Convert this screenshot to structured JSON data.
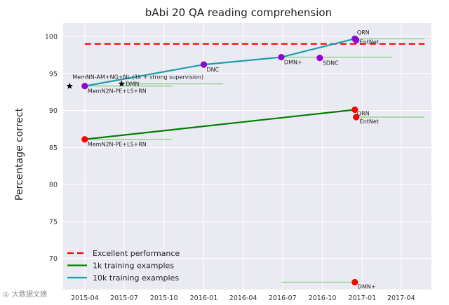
{
  "chart_data": {
    "type": "scatter",
    "title": "bAbi 20 QA reading comprehension",
    "ylabel": "Percentage correct",
    "xlabel": "",
    "xlim": [
      "2015-02-10",
      "2017-06-10"
    ],
    "ylim": [
      65.8,
      101.8
    ],
    "yticks": [
      70,
      75,
      80,
      85,
      90,
      95,
      100
    ],
    "xticks": [
      "2015-04",
      "2015-07",
      "2015-10",
      "2016-01",
      "2016-04",
      "2016-07",
      "2016-10",
      "2017-01",
      "2017-04"
    ],
    "grid": true,
    "legend_position": "lower-left",
    "series": [
      {
        "name": "Excellent performance",
        "kind": "dashed-line",
        "color": "#ff0000",
        "x": [
          "2015-04-01",
          "2017-05-25"
        ],
        "y": [
          99,
          99
        ]
      },
      {
        "name": "1k training examples",
        "kind": "line",
        "color": "#008000",
        "x": [
          "2015-04-01",
          "2016-12-15"
        ],
        "y": [
          86.1,
          90.1
        ]
      },
      {
        "name": "10k training examples",
        "kind": "line",
        "color": "#1a9fae",
        "x": [
          "2015-04-01",
          "2016-01-01",
          "2016-06-28",
          "2016-12-15"
        ],
        "y": [
          93.3,
          96.2,
          97.2,
          99.7
        ]
      }
    ],
    "points": [
      {
        "label": "MemNN-AM+NG+NL (1k + strong supervision)",
        "x": "2015-02-25",
        "y": 93.3,
        "marker": "star",
        "color": "#000000"
      },
      {
        "label": "MemN2N-PE+LS+RN",
        "x": "2015-04-01",
        "y": 93.3,
        "marker": "circle",
        "color": "#9400d3",
        "err": [
          "2015-04-01",
          "2015-10-20"
        ]
      },
      {
        "label": "DMN",
        "x": "2015-06-25",
        "y": 93.6,
        "marker": "star",
        "color": "#000000",
        "err": [
          "2015-06-25",
          "2016-02-15"
        ]
      },
      {
        "label": "DNC",
        "x": "2016-01-01",
        "y": 96.2,
        "marker": "circle",
        "color": "#9400d3"
      },
      {
        "label": "DMN+",
        "x": "2016-06-28",
        "y": 97.2,
        "marker": "circle",
        "color": "#9400d3",
        "err": [
          "2016-06-28",
          "2017-03-10"
        ]
      },
      {
        "label": "SDNC",
        "x": "2016-09-25",
        "y": 97.1,
        "marker": "circle",
        "color": "#9400d3"
      },
      {
        "label": "QRN",
        "x": "2016-12-15",
        "y": 99.7,
        "marker": "circle",
        "color": "#9400d3",
        "err": [
          "2016-12-15",
          "2017-05-25"
        ]
      },
      {
        "label": "EntNet",
        "x": "2016-12-18",
        "y": 99.5,
        "marker": "circle",
        "color": "#9400d3"
      },
      {
        "label": "MemN2N-PE+LS+RN",
        "x": "2015-04-01",
        "y": 86.1,
        "marker": "circle",
        "color": "#ff0000",
        "err": [
          "2015-04-01",
          "2015-10-20"
        ]
      },
      {
        "label": "QRN",
        "x": "2016-12-15",
        "y": 90.1,
        "marker": "circle",
        "color": "#ff0000"
      },
      {
        "label": "EntNet",
        "x": "2016-12-18",
        "y": 89.1,
        "marker": "circle",
        "color": "#ff0000",
        "err": [
          "2016-12-18",
          "2017-05-25"
        ]
      },
      {
        "label": "DMN+",
        "x": "2016-12-15",
        "y": 66.8,
        "marker": "circle",
        "color": "#ff0000",
        "err": [
          "2016-06-28",
          "2016-12-15"
        ]
      }
    ]
  },
  "watermark": "大数据文摘"
}
